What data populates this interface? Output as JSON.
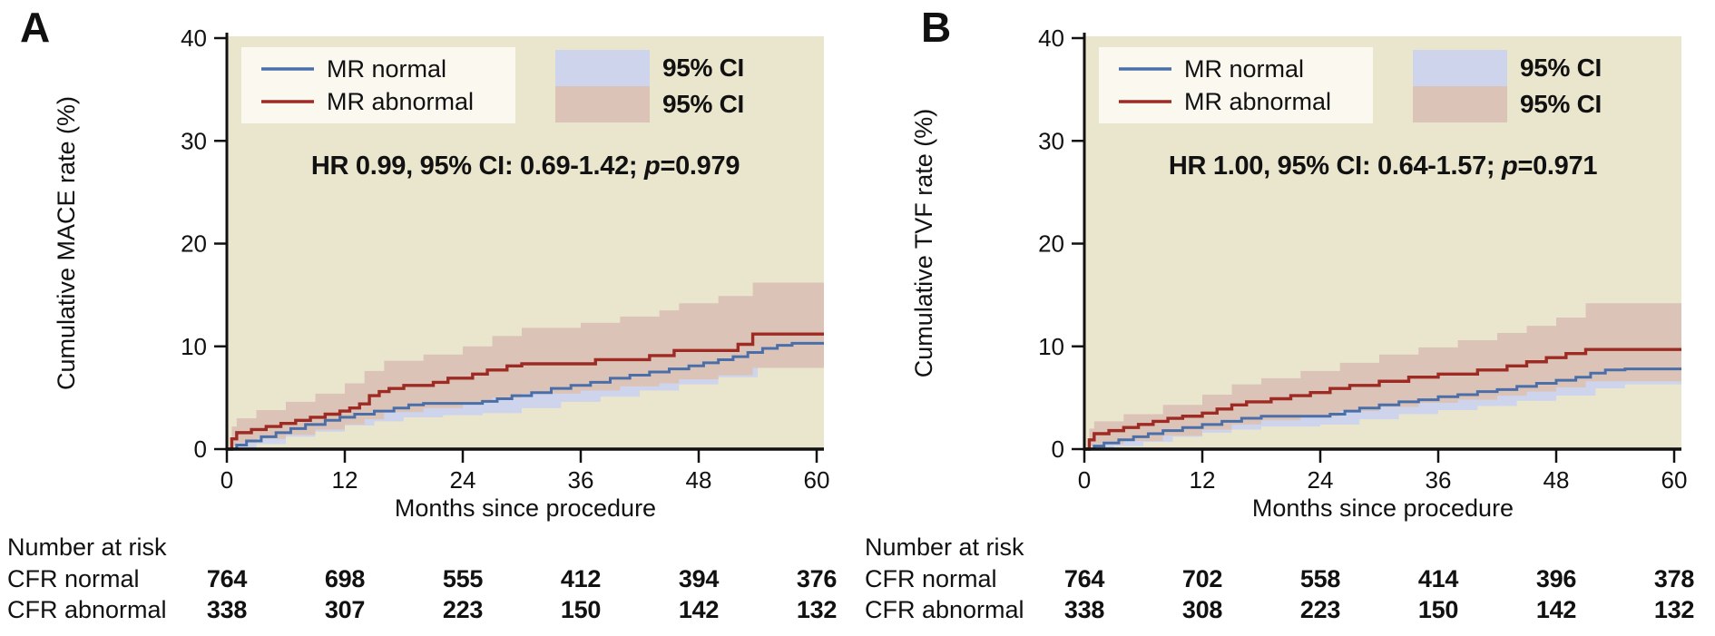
{
  "figure": {
    "background": "#ffffff"
  },
  "style": {
    "plot_bg": "#eae6ce",
    "legend_bg": "#faf8ef",
    "axis_color": "#111111",
    "text_color": "#111111",
    "normal_line": "#4a6fa8",
    "abnormal_line": "#9d2b23",
    "normal_ci": "#cdd4ec",
    "abnormal_ci": "#dcc3b8",
    "risk_normal_color": "#3d6cb3",
    "risk_abnormal_color": "#a32c26"
  },
  "chart_data": [
    {
      "panel_label": "A",
      "type": "line",
      "subtype": "kaplan-meier-step",
      "title": "",
      "ylabel": "Cumulative MACE rate (%)",
      "xlabel": "Months since procedure",
      "xlim": [
        0,
        60
      ],
      "ylim": [
        0,
        40
      ],
      "xticks": [
        0,
        12,
        24,
        36,
        48,
        60
      ],
      "yticks": [
        0,
        10,
        20,
        30,
        40
      ],
      "grid": false,
      "legend_position": "top-left",
      "annotation": {
        "text_before_p": "HR 0.99, 95% CI: 0.69-1.42; ",
        "p_symbol": "p",
        "text_after_p": "=0.979"
      },
      "legend": [
        {
          "label": "MR normal",
          "series": "normal"
        },
        {
          "label": "MR abnormal",
          "series": "abnormal"
        }
      ],
      "ci_legend": [
        {
          "label": "95% CI",
          "series": "normal"
        },
        {
          "label": "95% CI",
          "series": "abnormal"
        }
      ],
      "series": [
        {
          "name": "MR normal",
          "key": "normal",
          "steps": [
            [
              0,
              0
            ],
            [
              1,
              0.4
            ],
            [
              2,
              0.8
            ],
            [
              3.5,
              1.2
            ],
            [
              5,
              1.6
            ],
            [
              6.5,
              2.0
            ],
            [
              8,
              2.4
            ],
            [
              10,
              2.8
            ],
            [
              11.5,
              3.1
            ],
            [
              13,
              3.4
            ],
            [
              15,
              3.7
            ],
            [
              17,
              4.0
            ],
            [
              18.5,
              4.3
            ],
            [
              20,
              4.45
            ],
            [
              26,
              4.65
            ],
            [
              27.5,
              4.9
            ],
            [
              29,
              5.2
            ],
            [
              31,
              5.5
            ],
            [
              33,
              5.9
            ],
            [
              35,
              6.2
            ],
            [
              37,
              6.5
            ],
            [
              39,
              6.9
            ],
            [
              41,
              7.2
            ],
            [
              43,
              7.5
            ],
            [
              45,
              7.8
            ],
            [
              47,
              8.1
            ],
            [
              48.5,
              8.4
            ],
            [
              50,
              8.7
            ],
            [
              51.5,
              9.0
            ],
            [
              53,
              9.4
            ],
            [
              54.5,
              9.8
            ],
            [
              56,
              10.1
            ],
            [
              57.5,
              10.3
            ]
          ],
          "ci": [
            [
              0,
              0,
              0
            ],
            [
              1,
              0.1,
              0.9
            ],
            [
              3,
              0.5,
              1.9
            ],
            [
              6,
              1.2,
              2.9
            ],
            [
              9,
              1.7,
              3.6
            ],
            [
              12,
              2.3,
              4.4
            ],
            [
              15,
              2.7,
              4.9
            ],
            [
              18,
              3.1,
              5.4
            ],
            [
              22,
              3.3,
              5.7
            ],
            [
              26,
              3.5,
              6.0
            ],
            [
              30,
              4.0,
              6.6
            ],
            [
              34,
              4.6,
              7.3
            ],
            [
              38,
              5.1,
              8.0
            ],
            [
              42,
              5.7,
              8.7
            ],
            [
              46,
              6.3,
              9.5
            ],
            [
              50,
              7.0,
              10.5
            ],
            [
              54,
              7.9,
              11.8
            ],
            [
              57,
              8.4,
              12.3
            ]
          ]
        },
        {
          "name": "MR abnormal",
          "key": "abnormal",
          "steps": [
            [
              0,
              0
            ],
            [
              0.5,
              1.0
            ],
            [
              1,
              1.6
            ],
            [
              2.5,
              1.9
            ],
            [
              4,
              2.2
            ],
            [
              5.5,
              2.5
            ],
            [
              7,
              2.8
            ],
            [
              8.5,
              3.1
            ],
            [
              10,
              3.4
            ],
            [
              11.5,
              3.7
            ],
            [
              12.5,
              4.0
            ],
            [
              13.5,
              4.4
            ],
            [
              14.5,
              5.2
            ],
            [
              15.5,
              5.6
            ],
            [
              16.5,
              5.9
            ],
            [
              18,
              6.2
            ],
            [
              21,
              6.5
            ],
            [
              22.5,
              6.9
            ],
            [
              25,
              7.3
            ],
            [
              26.5,
              7.7
            ],
            [
              28.5,
              8.1
            ],
            [
              30,
              8.3
            ],
            [
              37.5,
              8.7
            ],
            [
              43,
              9.1
            ],
            [
              45.5,
              9.6
            ],
            [
              52,
              10.2
            ],
            [
              53.5,
              11.2
            ]
          ],
          "ci": [
            [
              0,
              0,
              0
            ],
            [
              0.5,
              0.3,
              2.2
            ],
            [
              1,
              0.6,
              3.0
            ],
            [
              3,
              1.0,
              3.8
            ],
            [
              6,
              1.4,
              4.6
            ],
            [
              9,
              1.9,
              5.4
            ],
            [
              12,
              2.4,
              6.4
            ],
            [
              14,
              2.9,
              7.6
            ],
            [
              16,
              3.6,
              8.6
            ],
            [
              20,
              4.0,
              9.2
            ],
            [
              24,
              4.5,
              10.0
            ],
            [
              27,
              5.0,
              11.0
            ],
            [
              30,
              5.4,
              11.8
            ],
            [
              36,
              5.7,
              12.3
            ],
            [
              40,
              6.1,
              12.9
            ],
            [
              44,
              6.4,
              13.5
            ],
            [
              46,
              6.8,
              14.2
            ],
            [
              50,
              7.2,
              14.9
            ],
            [
              53.5,
              7.9,
              16.2
            ]
          ]
        }
      ],
      "risk_table": {
        "title": "Number at risk",
        "times": [
          0,
          12,
          24,
          36,
          48,
          60
        ],
        "rows": [
          {
            "label": "CFR normal",
            "key": "normal",
            "values": [
              764,
              698,
              555,
              412,
              394,
              376
            ]
          },
          {
            "label": "CFR abnormal",
            "key": "abnormal",
            "values": [
              338,
              307,
              223,
              150,
              142,
              132
            ]
          }
        ]
      }
    },
    {
      "panel_label": "B",
      "type": "line",
      "subtype": "kaplan-meier-step",
      "title": "",
      "ylabel": "Cumulative TVF rate (%)",
      "xlabel": "Months since procedure",
      "xlim": [
        0,
        60
      ],
      "ylim": [
        0,
        40
      ],
      "xticks": [
        0,
        12,
        24,
        36,
        48,
        60
      ],
      "yticks": [
        0,
        10,
        20,
        30,
        40
      ],
      "grid": false,
      "legend_position": "top-left",
      "annotation": {
        "text_before_p": "HR 1.00, 95% CI: 0.64-1.57; ",
        "p_symbol": "p",
        "text_after_p": "=0.971"
      },
      "legend": [
        {
          "label": "MR normal",
          "series": "normal"
        },
        {
          "label": "MR abnormal",
          "series": "abnormal"
        }
      ],
      "ci_legend": [
        {
          "label": "95% CI",
          "series": "normal"
        },
        {
          "label": "95% CI",
          "series": "abnormal"
        }
      ],
      "series": [
        {
          "name": "MR normal",
          "key": "normal",
          "steps": [
            [
              0,
              0
            ],
            [
              1,
              0.3
            ],
            [
              2,
              0.6
            ],
            [
              3.5,
              0.9
            ],
            [
              5,
              1.2
            ],
            [
              6.5,
              1.5
            ],
            [
              8,
              1.8
            ],
            [
              10,
              2.1
            ],
            [
              12,
              2.4
            ],
            [
              14,
              2.7
            ],
            [
              16,
              3.0
            ],
            [
              18,
              3.2
            ],
            [
              25,
              3.4
            ],
            [
              26.5,
              3.7
            ],
            [
              28,
              4.0
            ],
            [
              30,
              4.3
            ],
            [
              32,
              4.6
            ],
            [
              34,
              4.8
            ],
            [
              36,
              5.1
            ],
            [
              38,
              5.3
            ],
            [
              40,
              5.6
            ],
            [
              42,
              5.8
            ],
            [
              44,
              6.1
            ],
            [
              46,
              6.4
            ],
            [
              48,
              6.7
            ],
            [
              50,
              7.0
            ],
            [
              51.5,
              7.4
            ],
            [
              53,
              7.7
            ],
            [
              55,
              7.8
            ]
          ],
          "ci": [
            [
              0,
              0,
              0
            ],
            [
              1,
              0.05,
              0.7
            ],
            [
              3,
              0.3,
              1.5
            ],
            [
              6,
              0.7,
              2.2
            ],
            [
              9,
              1.2,
              2.9
            ],
            [
              12,
              1.6,
              3.5
            ],
            [
              15,
              1.9,
              4.0
            ],
            [
              18,
              2.2,
              4.4
            ],
            [
              24,
              2.4,
              4.7
            ],
            [
              28,
              2.9,
              5.3
            ],
            [
              32,
              3.4,
              5.9
            ],
            [
              36,
              3.8,
              6.5
            ],
            [
              40,
              4.2,
              7.1
            ],
            [
              44,
              4.7,
              7.7
            ],
            [
              48,
              5.2,
              8.4
            ],
            [
              52,
              5.9,
              9.3
            ],
            [
              55,
              6.3,
              9.7
            ]
          ]
        },
        {
          "name": "MR abnormal",
          "key": "abnormal",
          "steps": [
            [
              0,
              0
            ],
            [
              0.5,
              0.9
            ],
            [
              1,
              1.5
            ],
            [
              2.5,
              1.8
            ],
            [
              4,
              2.1
            ],
            [
              5.5,
              2.4
            ],
            [
              7,
              2.7
            ],
            [
              8.5,
              3.0
            ],
            [
              10,
              3.2
            ],
            [
              12,
              3.5
            ],
            [
              13.5,
              3.9
            ],
            [
              15,
              4.3
            ],
            [
              16.5,
              4.6
            ],
            [
              19,
              4.9
            ],
            [
              21,
              5.2
            ],
            [
              23,
              5.5
            ],
            [
              25,
              5.9
            ],
            [
              27,
              6.2
            ],
            [
              30,
              6.6
            ],
            [
              33,
              7.0
            ],
            [
              36,
              7.3
            ],
            [
              40,
              7.7
            ],
            [
              43,
              8.1
            ],
            [
              45,
              8.5
            ],
            [
              47,
              8.9
            ],
            [
              49,
              9.3
            ],
            [
              51,
              9.7
            ]
          ],
          "ci": [
            [
              0,
              0,
              0
            ],
            [
              0.5,
              0.3,
              2.0
            ],
            [
              1,
              0.5,
              2.7
            ],
            [
              4,
              0.8,
              3.4
            ],
            [
              8,
              1.3,
              4.3
            ],
            [
              12,
              1.9,
              5.3
            ],
            [
              15,
              2.4,
              6.3
            ],
            [
              18,
              2.8,
              6.9
            ],
            [
              22,
              3.2,
              7.6
            ],
            [
              26,
              3.7,
              8.4
            ],
            [
              30,
              4.1,
              9.2
            ],
            [
              34,
              4.5,
              9.9
            ],
            [
              38,
              4.8,
              10.6
            ],
            [
              42,
              5.2,
              11.3
            ],
            [
              45,
              5.6,
              12.0
            ],
            [
              48,
              6.0,
              12.8
            ],
            [
              51,
              6.6,
              14.2
            ]
          ]
        }
      ],
      "risk_table": {
        "title": "Number at risk",
        "times": [
          0,
          12,
          24,
          36,
          48,
          60
        ],
        "rows": [
          {
            "label": "CFR normal",
            "key": "normal",
            "values": [
              764,
              702,
              558,
              414,
              396,
              378
            ]
          },
          {
            "label": "CFR abnormal",
            "key": "abnormal",
            "values": [
              338,
              308,
              223,
              150,
              142,
              132
            ]
          }
        ]
      }
    }
  ]
}
